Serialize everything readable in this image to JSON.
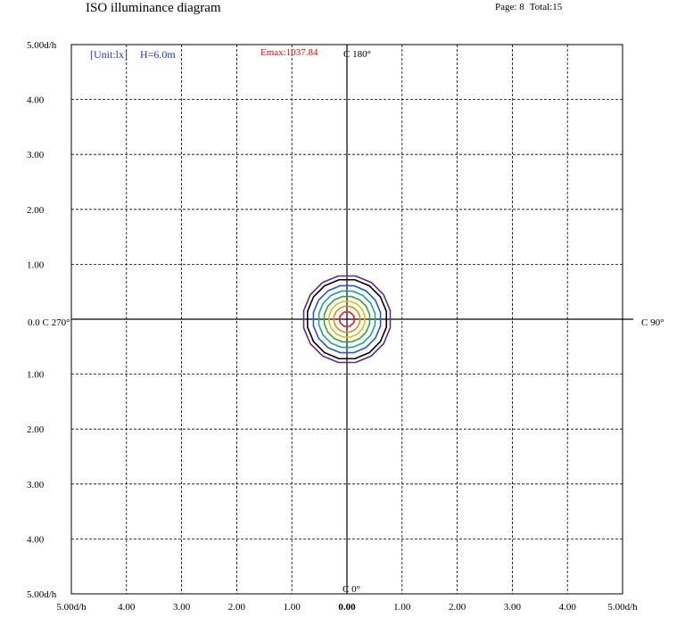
{
  "header": {
    "title": "ISO illuminance diagram",
    "page": "Page: 8",
    "total": "Total:15"
  },
  "chart_data": {
    "type": "contour",
    "unit_label": "[Unit:lx]",
    "height_label": "H=6.0m",
    "emax_label": "Emax:1037.84",
    "axis_labels": {
      "top": "C 180°",
      "bottom": "C 0°",
      "left": "0.0 C 270°",
      "right": "C 90°"
    },
    "x_ticks": [
      "5.00d/h",
      "4.00",
      "3.00",
      "2.00",
      "1.00",
      "0.00",
      "1.00",
      "2.00",
      "3.00",
      "4.00",
      "5.00d/h"
    ],
    "y_ticks_top": [
      "5.00d/h",
      "4.00",
      "3.00",
      "2.00",
      "1.00"
    ],
    "y_ticks_bottom": [
      "1.00",
      "2.00",
      "3.00",
      "4.00",
      "5.00d/h"
    ],
    "xlim": [
      -5,
      5
    ],
    "ylim": [
      -5,
      5
    ],
    "grid": true,
    "contours": [
      {
        "radius": 0.8,
        "color": "#5b2b8a"
      },
      {
        "radius": 0.73,
        "color": "#000000"
      },
      {
        "radius": 0.62,
        "color": "#2a55c8"
      },
      {
        "radius": 0.52,
        "color": "#1aa0a0"
      },
      {
        "radius": 0.42,
        "color": "#3aa035"
      },
      {
        "radius": 0.33,
        "color": "#d4c21a"
      },
      {
        "radius": 0.24,
        "color": "#e08a1a"
      },
      {
        "radius": 0.14,
        "color": "#e01818"
      }
    ],
    "colors": {
      "unit_label": "#2233dd",
      "emax_label": "#ee0000"
    }
  }
}
